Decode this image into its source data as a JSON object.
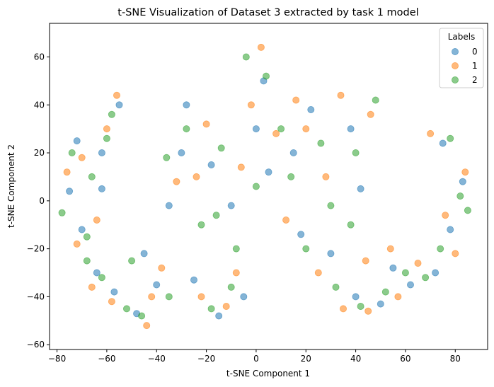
{
  "chart_data": {
    "type": "scatter",
    "title": "t-SNE Visualization of Dataset 3 extracted by task 1 model",
    "xlabel": "t-SNE Component 1",
    "ylabel": "t-SNE Component 2",
    "xlim": [
      -83,
      93
    ],
    "ylim": [
      -62,
      74
    ],
    "xticks": [
      -80,
      -60,
      -40,
      -20,
      0,
      20,
      40,
      60,
      80
    ],
    "yticks": [
      -60,
      -40,
      -20,
      0,
      20,
      40,
      60
    ],
    "grid": false,
    "legend": {
      "title": "Labels",
      "position": "top-right"
    },
    "marker_alpha": 0.55,
    "series": [
      {
        "name": "0",
        "color": "#1f77b4",
        "points": [
          [
            -75,
            4
          ],
          [
            -70,
            -12
          ],
          [
            -64,
            -30
          ],
          [
            -57,
            -38
          ],
          [
            -48,
            -47
          ],
          [
            -62,
            20
          ],
          [
            -55,
            40
          ],
          [
            -40,
            -35
          ],
          [
            -25,
            -33
          ],
          [
            -15,
            -48
          ],
          [
            -5,
            -40
          ],
          [
            -30,
            20
          ],
          [
            -18,
            15
          ],
          [
            -10,
            -2
          ],
          [
            0,
            30
          ],
          [
            5,
            12
          ],
          [
            3,
            50
          ],
          [
            -28,
            40
          ],
          [
            18,
            -14
          ],
          [
            30,
            -22
          ],
          [
            40,
            -40
          ],
          [
            50,
            -43
          ],
          [
            62,
            -35
          ],
          [
            72,
            -30
          ],
          [
            78,
            -12
          ],
          [
            83,
            8
          ],
          [
            75,
            24
          ],
          [
            22,
            38
          ],
          [
            38,
            30
          ],
          [
            42,
            5
          ],
          [
            55,
            -28
          ],
          [
            -45,
            -22
          ],
          [
            -62,
            5
          ],
          [
            -72,
            25
          ],
          [
            -35,
            -2
          ],
          [
            15,
            20
          ]
        ]
      },
      {
        "name": "1",
        "color": "#ff7f0e",
        "points": [
          [
            -76,
            12
          ],
          [
            -72,
            -18
          ],
          [
            -66,
            -36
          ],
          [
            -58,
            -42
          ],
          [
            -44,
            -52
          ],
          [
            -60,
            30
          ],
          [
            -56,
            44
          ],
          [
            -38,
            -28
          ],
          [
            -22,
            -40
          ],
          [
            -12,
            -44
          ],
          [
            -8,
            -30
          ],
          [
            -24,
            10
          ],
          [
            -20,
            32
          ],
          [
            -6,
            14
          ],
          [
            2,
            64
          ],
          [
            -2,
            40
          ],
          [
            8,
            28
          ],
          [
            12,
            -8
          ],
          [
            25,
            -30
          ],
          [
            35,
            -45
          ],
          [
            45,
            -46
          ],
          [
            57,
            -40
          ],
          [
            65,
            -26
          ],
          [
            76,
            -6
          ],
          [
            84,
            12
          ],
          [
            70,
            28
          ],
          [
            20,
            30
          ],
          [
            34,
            44
          ],
          [
            46,
            36
          ],
          [
            44,
            -25
          ],
          [
            -42,
            -40
          ],
          [
            -64,
            -8
          ],
          [
            -70,
            18
          ],
          [
            -32,
            8
          ],
          [
            16,
            42
          ],
          [
            28,
            10
          ],
          [
            54,
            -20
          ],
          [
            80,
            -22
          ]
        ]
      },
      {
        "name": "2",
        "color": "#2ca02c",
        "points": [
          [
            -78,
            -5
          ],
          [
            -74,
            20
          ],
          [
            -68,
            -25
          ],
          [
            -62,
            -32
          ],
          [
            -52,
            -45
          ],
          [
            -66,
            10
          ],
          [
            -58,
            36
          ],
          [
            -50,
            -25
          ],
          [
            -35,
            -40
          ],
          [
            -18,
            -45
          ],
          [
            -10,
            -36
          ],
          [
            -28,
            30
          ],
          [
            -14,
            22
          ],
          [
            -16,
            -6
          ],
          [
            -4,
            60
          ],
          [
            4,
            52
          ],
          [
            0,
            6
          ],
          [
            10,
            30
          ],
          [
            20,
            -20
          ],
          [
            32,
            -36
          ],
          [
            42,
            -44
          ],
          [
            52,
            -38
          ],
          [
            68,
            -32
          ],
          [
            74,
            -20
          ],
          [
            82,
            2
          ],
          [
            78,
            26
          ],
          [
            26,
            24
          ],
          [
            40,
            20
          ],
          [
            48,
            42
          ],
          [
            38,
            -10
          ],
          [
            -46,
            -48
          ],
          [
            -68,
            -15
          ],
          [
            -60,
            26
          ],
          [
            -36,
            18
          ],
          [
            -22,
            -10
          ],
          [
            14,
            10
          ],
          [
            60,
            -30
          ],
          [
            85,
            -4
          ],
          [
            30,
            -2
          ],
          [
            -8,
            -20
          ]
        ]
      }
    ]
  }
}
